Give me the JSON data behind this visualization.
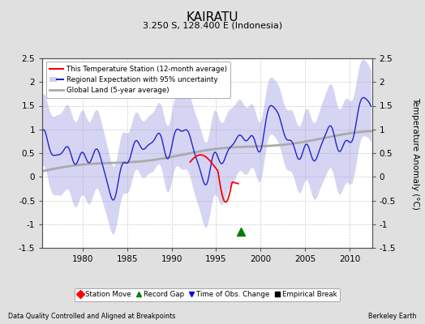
{
  "title": "KAIRATU",
  "subtitle": "3.250 S, 128.400 E (Indonesia)",
  "ylabel": "Temperature Anomaly (°C)",
  "xlabel_left": "Data Quality Controlled and Aligned at Breakpoints",
  "xlabel_right": "Berkeley Earth",
  "ylim": [
    -1.5,
    2.5
  ],
  "xlim": [
    1975.5,
    2012.5
  ],
  "yticks": [
    -1.5,
    -1.0,
    -0.5,
    0.0,
    0.5,
    1.0,
    1.5,
    2.0,
    2.5
  ],
  "ytick_labels": [
    "-1.5",
    "-1",
    "-0.5",
    "0",
    "0.5",
    "1",
    "1.5",
    "2",
    "2.5"
  ],
  "xticks": [
    1980,
    1985,
    1990,
    1995,
    2000,
    2005,
    2010
  ],
  "bg_color": "#e0e0e0",
  "plot_bg_color": "#ffffff",
  "legend_entries": [
    {
      "label": "This Temperature Station (12-month average)",
      "color": "red",
      "lw": 1.5
    },
    {
      "label": "Regional Expectation with 95% uncertainty",
      "color": "blue",
      "lw": 1.5
    },
    {
      "label": "Global Land (5-year average)",
      "color": "#aaaaaa",
      "lw": 2.0
    }
  ],
  "marker_entries": [
    {
      "label": "Station Move",
      "marker": "D",
      "color": "red"
    },
    {
      "label": "Record Gap",
      "marker": "^",
      "color": "green"
    },
    {
      "label": "Time of Obs. Change",
      "marker": "v",
      "color": "blue"
    },
    {
      "label": "Empirical Break",
      "marker": "s",
      "color": "black"
    }
  ],
  "obs_change_x": 1997.8,
  "obs_change_y": -1.15
}
